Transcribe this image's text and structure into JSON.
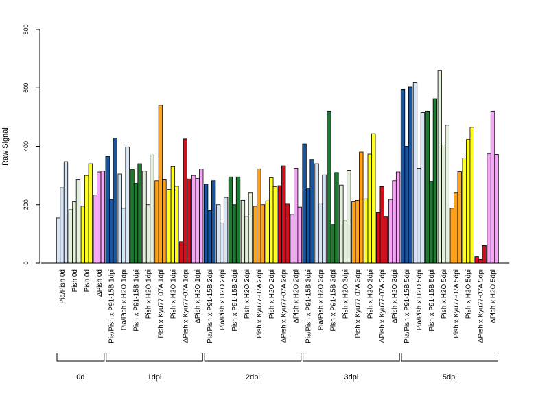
{
  "chart_data": {
    "type": "bar",
    "title": "",
    "xlabel": "",
    "ylabel": "Raw Signal",
    "ylim": [
      0,
      800
    ],
    "yticks": [
      "0",
      "200",
      "400",
      "600",
      "800"
    ],
    "grid": false,
    "legend": "none",
    "categories": [
      "Pia/Pish 0d",
      "Pish 0d",
      "Pish 0d",
      "ΔPish 0d",
      "Pia/Pish x P91-15B 1dpi",
      "Pia/Pish x H2O 1dpi",
      "Pish x P91-15B 1dpi",
      "Pish x H2O 1dpi",
      "Pish x Kyu77-07A 1dpi",
      "Pish x H2O 1dpi",
      "ΔPish x Kyu77-07A 1dpi",
      "ΔPish x H2O 1dpi",
      "Pia/Pish x P91-15B 2dpi",
      "Pia/Pish x H2O 2dpi",
      "Pish x P91-15B 2dpi",
      "Pish x H2O 2dpi",
      "Pish x Kyu77-07A 2dpi",
      "Pish x H2O 2dpi",
      "ΔPish x Kyu77-07A 2dpi",
      "ΔPish x H2O 2dpi",
      "Pia/Pish x P91-15B 3dpi",
      "Pia/Pish x H2O 3dpi",
      "Pish x P91-15B 3dpi",
      "Pish x H2O 3dpi",
      "Pish x Kyu77-07A 3dpi",
      "Pish x H2O 3dpi",
      "ΔPish x Kyu77-07A 3dpi",
      "ΔPish x H2O 3dpi",
      "Pia/Pish x P91-15B 5dpi",
      "Pia/Pish x H2O 5dpi",
      "Pish x P91-15B 5dpi",
      "Pish x H2O 5dpi",
      "Pish x Kyu77-07A 5dpi",
      "Pish x H2O 5dpi",
      "ΔPish x Kyu77-07A 5dpi",
      "ΔPish x H2O 5dpi"
    ],
    "category_colors": [
      "#d6e4f4",
      "#e4f0dc",
      "#ffff22",
      "#f6a6f6",
      "#1a55a0",
      "#d6e4f4",
      "#1f7a32",
      "#e4f0dc",
      "#ffa21a",
      "#ffff22",
      "#d0101c",
      "#f6a6f6",
      "#1a55a0",
      "#d6e4f4",
      "#1f7a32",
      "#e4f0dc",
      "#ffa21a",
      "#ffff22",
      "#d0101c",
      "#f6a6f6",
      "#1a55a0",
      "#d6e4f4",
      "#1f7a32",
      "#e4f0dc",
      "#ffa21a",
      "#ffff22",
      "#d0101c",
      "#f6a6f6",
      "#1a55a0",
      "#d6e4f4",
      "#1f7a32",
      "#e4f0dc",
      "#ffa21a",
      "#ffff22",
      "#d0101c",
      "#f6a6f6"
    ],
    "values": [
      [
        155,
        258,
        347
      ],
      [
        183,
        210,
        285
      ],
      [
        195,
        300,
        340
      ],
      [
        233,
        312,
        315
      ],
      [
        365,
        218,
        428
      ],
      [
        305,
        188,
        398
      ],
      [
        320,
        273,
        340
      ],
      [
        315,
        200,
        370
      ],
      [
        282,
        540,
        285
      ],
      [
        252,
        330,
        263
      ],
      [
        73,
        425,
        288
      ],
      [
        300,
        290,
        322
      ],
      [
        270,
        180,
        282
      ],
      [
        200,
        137,
        225
      ],
      [
        295,
        200,
        295
      ],
      [
        215,
        160,
        240
      ],
      [
        195,
        323,
        200
      ],
      [
        213,
        292,
        262
      ],
      [
        265,
        333,
        202
      ],
      [
        167,
        325,
        192
      ],
      [
        408,
        257,
        355
      ],
      [
        340,
        205,
        302
      ],
      [
        520,
        132,
        310
      ],
      [
        267,
        145,
        318
      ],
      [
        210,
        215,
        380
      ],
      [
        220,
        373,
        443
      ],
      [
        173,
        262,
        158
      ],
      [
        218,
        282,
        312
      ],
      [
        595,
        400,
        603
      ],
      [
        618,
        325,
        515
      ],
      [
        520,
        280,
        563
      ],
      [
        660,
        405,
        472
      ],
      [
        188,
        240,
        313
      ],
      [
        360,
        423,
        465
      ],
      [
        22,
        13,
        60
      ],
      [
        375,
        520,
        372
      ]
    ],
    "groups": [
      {
        "label": "0d",
        "count": 4
      },
      {
        "label": "1dpi",
        "count": 8
      },
      {
        "label": "2dpi",
        "count": 8
      },
      {
        "label": "3dpi",
        "count": 8
      },
      {
        "label": "5dpi",
        "count": 8
      }
    ]
  }
}
